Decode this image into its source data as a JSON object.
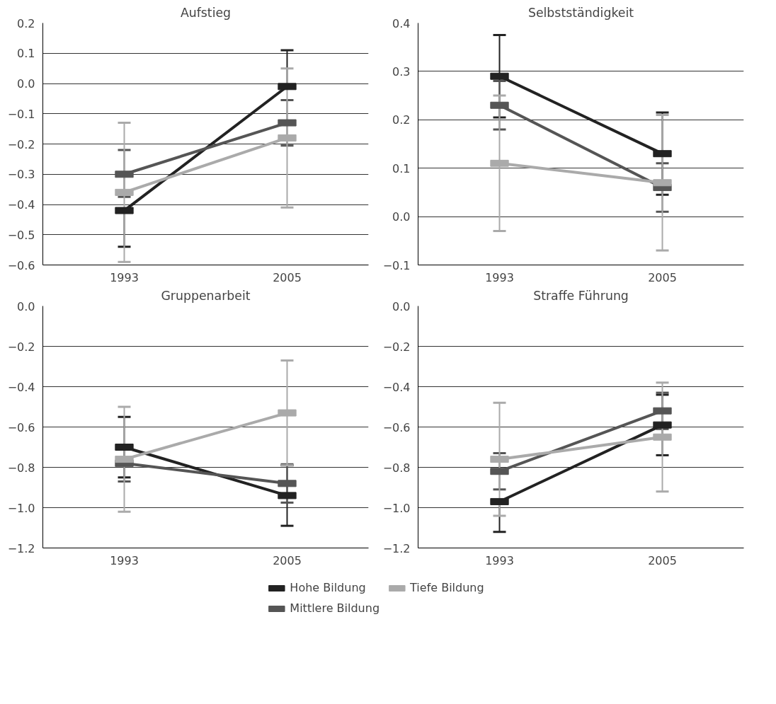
{
  "chart_data": [
    {
      "type": "line",
      "title": "Aufstieg",
      "categories": [
        "1993",
        "2005"
      ],
      "ylim": [
        -0.6,
        0.2
      ],
      "yticks": [
        {
          "value": -0.6,
          "label": "−0.6"
        },
        {
          "value": -0.5,
          "label": "−0.5"
        },
        {
          "value": -0.4,
          "label": "−0.4"
        },
        {
          "value": -0.3,
          "label": "−0.3"
        },
        {
          "value": -0.2,
          "label": "−0.2"
        },
        {
          "value": -0.1,
          "label": "−0.1"
        },
        {
          "value": 0,
          "label": "0.0"
        },
        {
          "value": 0.1,
          "label": "0.1"
        },
        {
          "value": 0.2,
          "label": "0.2"
        }
      ],
      "grid": "y",
      "marker": "square",
      "legend": "bottom",
      "series": [
        {
          "name": "Hohe Bildung",
          "color": "#222222",
          "values": [
            -0.42,
            -0.01
          ],
          "errors": [
            [
              -0.54,
              -0.42
            ],
            [
              -0.01,
              0.11
            ]
          ]
        },
        {
          "name": "Mittlere Bildung",
          "color": "#555555",
          "values": [
            -0.3,
            -0.13
          ],
          "errors": [
            [
              -0.375,
              -0.22
            ],
            [
              -0.205,
              -0.055
            ]
          ]
        },
        {
          "name": "Tiefe Bildung",
          "color": "#aaaaaa",
          "values": [
            -0.36,
            -0.18
          ],
          "errors": [
            [
              -0.59,
              -0.13
            ],
            [
              -0.41,
              0.05
            ]
          ]
        }
      ]
    },
    {
      "type": "line",
      "title": "Selbstständigkeit",
      "categories": [
        "1993",
        "2005"
      ],
      "ylim": [
        -0.1,
        0.4
      ],
      "yticks": [
        {
          "value": -0.1,
          "label": "−0.1"
        },
        {
          "value": 0,
          "label": "0.0"
        },
        {
          "value": 0.1,
          "label": "0.1"
        },
        {
          "value": 0.2,
          "label": "0.2"
        },
        {
          "value": 0.3,
          "label": "0.3"
        },
        {
          "value": 0.4,
          "label": "0.4"
        }
      ],
      "grid": "y",
      "marker": "square",
      "series": [
        {
          "color": "#222222",
          "values": [
            0.29,
            0.13
          ],
          "errors": [
            [
              0.205,
              0.375
            ],
            [
              0.045,
              0.215
            ]
          ]
        },
        {
          "color": "#555555",
          "values": [
            0.23,
            0.06
          ],
          "errors": [
            [
              0.18,
              0.28
            ],
            [
              0.01,
              0.11
            ]
          ]
        },
        {
          "color": "#aaaaaa",
          "values": [
            0.11,
            0.07
          ],
          "errors": [
            [
              -0.03,
              0.25
            ],
            [
              -0.07,
              0.21
            ]
          ]
        }
      ]
    },
    {
      "type": "line",
      "title": "Gruppenarbeit",
      "categories": [
        "1993",
        "2005"
      ],
      "ylim": [
        -1.2,
        0
      ],
      "yticks": [
        {
          "value": -1.2,
          "label": "−1.2"
        },
        {
          "value": -1.0,
          "label": "−1.0"
        },
        {
          "value": -0.8,
          "label": "−0.8"
        },
        {
          "value": -0.6,
          "label": "−0.6"
        },
        {
          "value": -0.4,
          "label": "−0.4"
        },
        {
          "value": -0.2,
          "label": "−0.2"
        },
        {
          "value": 0,
          "label": "0.0"
        }
      ],
      "grid": "y",
      "marker": "square",
      "series": [
        {
          "color": "#222222",
          "values": [
            -0.7,
            -0.94
          ],
          "errors": [
            [
              -0.85,
              -0.55
            ],
            [
              -1.09,
              -0.79
            ]
          ]
        },
        {
          "color": "#555555",
          "values": [
            -0.78,
            -0.88
          ],
          "errors": [
            [
              -0.87,
              -0.69
            ],
            [
              -0.975,
              -0.785
            ]
          ]
        },
        {
          "color": "#aaaaaa",
          "values": [
            -0.76,
            -0.53
          ],
          "errors": [
            [
              -1.02,
              -0.5
            ],
            [
              -0.79,
              -0.27
            ]
          ]
        }
      ]
    },
    {
      "type": "line",
      "title": "Straffe Führung",
      "categories": [
        "1993",
        "2005"
      ],
      "ylim": [
        -1.2,
        0
      ],
      "yticks": [
        {
          "value": -1.2,
          "label": "−1.2"
        },
        {
          "value": -1.0,
          "label": "−1.0"
        },
        {
          "value": -0.8,
          "label": "−0.8"
        },
        {
          "value": -0.6,
          "label": "−0.6"
        },
        {
          "value": -0.4,
          "label": "−0.4"
        },
        {
          "value": -0.2,
          "label": "−0.2"
        },
        {
          "value": 0,
          "label": "0.0"
        }
      ],
      "grid": "y",
      "marker": "square",
      "series": [
        {
          "color": "#222222",
          "values": [
            -0.97,
            -0.59
          ],
          "errors": [
            [
              -1.12,
              -0.97
            ],
            [
              -0.74,
              -0.44
            ]
          ]
        },
        {
          "color": "#555555",
          "values": [
            -0.82,
            -0.52
          ],
          "errors": [
            [
              -0.91,
              -0.73
            ],
            [
              -0.61,
              -0.43
            ]
          ]
        },
        {
          "color": "#aaaaaa",
          "values": [
            -0.76,
            -0.65
          ],
          "errors": [
            [
              -1.04,
              -0.48
            ],
            [
              -0.92,
              -0.38
            ]
          ]
        }
      ]
    }
  ]
}
